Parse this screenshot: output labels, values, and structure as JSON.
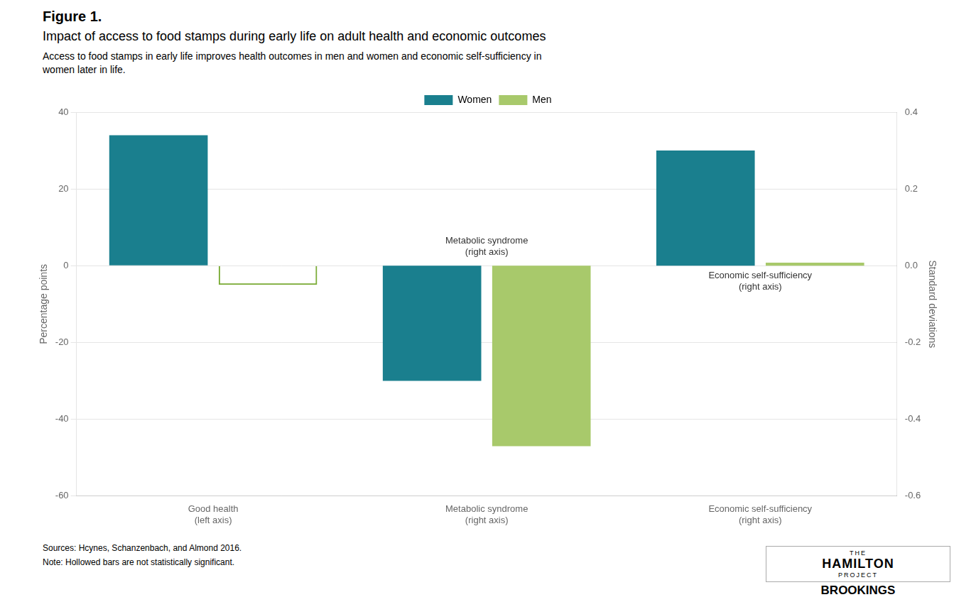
{
  "chart_data": {
    "type": "bar",
    "figure_label": "Figure 1.",
    "title": "Impact of access to food stamps during early life on adult health and economic outcomes",
    "subtitle": "Access to food stamps in early life improves health outcomes in men and women and economic self-sufficiency in\nwomen later in life.",
    "source": "Sources: Hcynes, Schanzenbach, and Almond 2016.",
    "note": "Note: Hollowed bars are not statistically significant.",
    "logo": [
      "THE",
      "HAMILTON",
      "PROJECT",
      "BROOKINGS"
    ],
    "categories": [
      "Good health\n(left axis)",
      "Metabolic syndrome\n(right axis)",
      "Economic self-sufficiency\n(right axis)"
    ],
    "series": [
      {
        "name": "Women",
        "color": "#1a7f8e",
        "axis": "y",
        "values": [
          34,
          null,
          null
        ]
      },
      {
        "name": "Men",
        "color": "#7aab35",
        "marker": "hollow",
        "axis": "y",
        "values": [
          -5,
          null,
          null
        ]
      },
      {
        "name": "Women",
        "color": "#1a7f8e",
        "axis": "y2",
        "values": [
          null,
          -0.3,
          0.3
        ]
      },
      {
        "name": "Men",
        "color": "#a8c96b",
        "axis": "y2",
        "values": [
          null,
          -0.47,
          0.008
        ]
      }
    ],
    "ylabel": "Percentage points",
    "y2label": "Standard deviations",
    "ylim": [
      -60,
      40
    ],
    "yticks": [
      -60,
      -40,
      -20,
      0,
      20,
      40
    ],
    "y2lim": [
      -0.6,
      0.4
    ],
    "y2ticks": [
      -0.6,
      -0.4,
      -0.2,
      {
        "value": 0,
        "label": "0.0"
      },
      0.2,
      0.4
    ],
    "grid": true,
    "legend": "top",
    "annotations": [
      {
        "text": "Metabolic syndrome\n(right axis)",
        "x": "Metabolic syndrome\n(right axis)"
      },
      {
        "text": "Economic self-sufficiency\n(right axis)",
        "x": "Economic self-sufficiency\n(right axis)"
      }
    ]
  }
}
